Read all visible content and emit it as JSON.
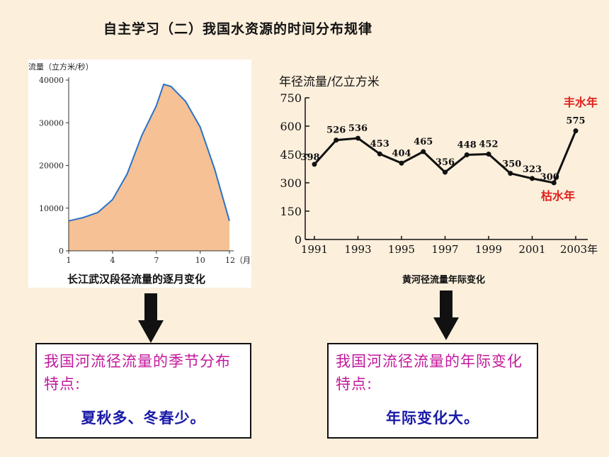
{
  "title": "自主学习（二）我国水资源的时间分布规律",
  "chart_data": [
    {
      "type": "area",
      "ylabel": "流量（立方米/秒）",
      "title": "长江武汉段径流量的逐月变化",
      "x_ticks": [
        "1",
        "4",
        "7",
        "10",
        "12（月）"
      ],
      "y_ticks": [
        "0",
        "10000",
        "20000",
        "30000",
        "40000"
      ],
      "ylim": [
        0,
        40000
      ],
      "x": [
        1,
        2,
        3,
        4,
        5,
        6,
        7,
        7.5,
        8,
        9,
        10,
        11,
        12
      ],
      "values": [
        7000,
        7800,
        9000,
        12000,
        18000,
        27000,
        34000,
        39000,
        38500,
        35000,
        29000,
        19000,
        7000
      ],
      "fill_color": "#f5c195",
      "line_color": "#2a72c9"
    },
    {
      "type": "line",
      "ylabel": "年径流量/亿立方米",
      "title": "黄河径流量年际变化",
      "x": [
        1991,
        1992,
        1993,
        1994,
        1995,
        1996,
        1997,
        1998,
        1999,
        2000,
        2001,
        2002,
        2003
      ],
      "values": [
        398,
        526,
        536,
        453,
        404,
        465,
        356,
        448,
        452,
        350,
        323,
        300,
        575
      ],
      "x_ticks": [
        "1991",
        "1993",
        "1995",
        "1997",
        "1999",
        "2001",
        "2003年"
      ],
      "y_ticks": [
        "0",
        "150",
        "300",
        "450",
        "600",
        "750"
      ],
      "ylim": [
        0,
        750
      ],
      "annotations": {
        "high": "丰水年",
        "low": "枯水年"
      },
      "annotation_color": "#e0211d"
    }
  ],
  "boxes": {
    "left": {
      "text": "我国河流径流量的季节分布特点:",
      "answer": "夏秋多、冬春少。"
    },
    "right": {
      "text": "我国河流径流量的年际变化特点:",
      "answer": "年际变化大。"
    }
  }
}
